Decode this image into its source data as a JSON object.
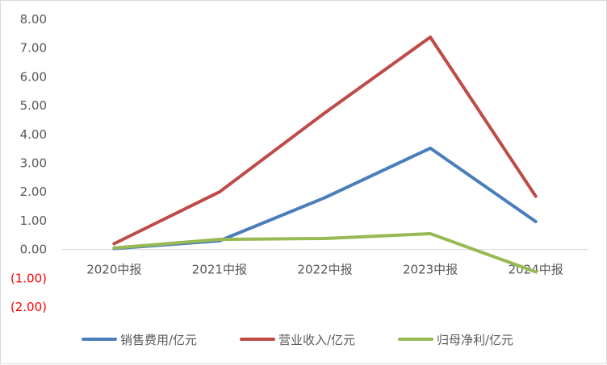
{
  "chart_data": {
    "type": "line",
    "title": "",
    "xlabel": "",
    "ylabel": "",
    "categories": [
      "2020中报",
      "2021中报",
      "2022中报",
      "2023中报",
      "2024中报"
    ],
    "ylim": [
      -2,
      8
    ],
    "y_ticks": [
      {
        "value": 8,
        "label": "8.00"
      },
      {
        "value": 7,
        "label": "7.00"
      },
      {
        "value": 6,
        "label": "6.00"
      },
      {
        "value": 5,
        "label": "5.00"
      },
      {
        "value": 4,
        "label": "4.00"
      },
      {
        "value": 3,
        "label": "3.00"
      },
      {
        "value": 2,
        "label": "2.00"
      },
      {
        "value": 1,
        "label": "1.00"
      },
      {
        "value": 0,
        "label": "0.00"
      },
      {
        "value": -1,
        "label": "(1.00)"
      },
      {
        "value": -2,
        "label": "(2.00)"
      }
    ],
    "negative_label_color": "#ff0000",
    "grid": false,
    "legend_position": "bottom",
    "series": [
      {
        "name": "销售费用/亿元",
        "color": "#4a7ebb",
        "values": [
          0.03,
          0.3,
          1.8,
          3.52,
          0.97
        ]
      },
      {
        "name": "营业收入/亿元",
        "color": "#be4b48",
        "values": [
          0.2,
          2.0,
          4.75,
          7.38,
          1.85
        ]
      },
      {
        "name": "归母净利/亿元",
        "color": "#98b954",
        "values": [
          0.05,
          0.35,
          0.38,
          0.55,
          -0.78
        ]
      }
    ]
  }
}
